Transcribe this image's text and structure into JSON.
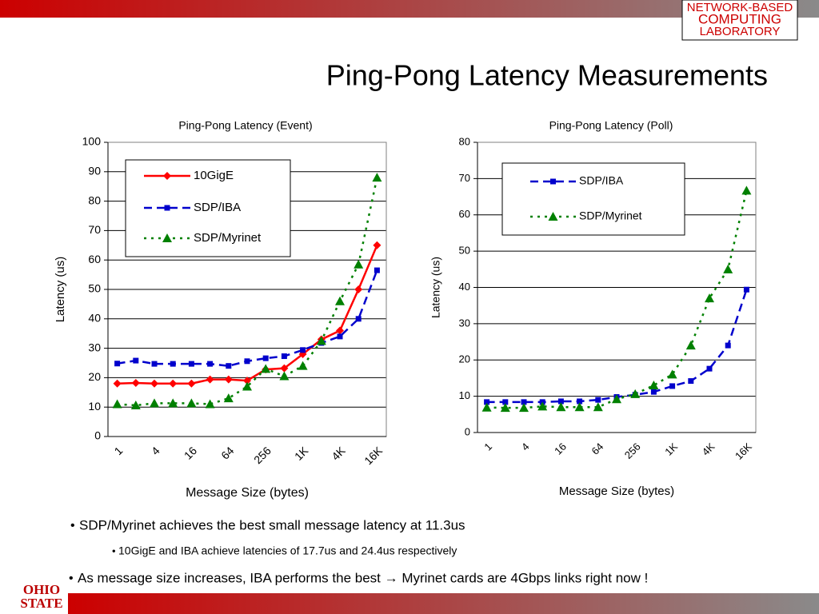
{
  "header": {
    "logo": [
      "NETWORK-BASED",
      "COMPUTING",
      "LABORATORY"
    ],
    "title": "Ping-Pong Latency Measurements"
  },
  "chart_data": [
    {
      "type": "line",
      "title": "Ping-Pong Latency (Event)",
      "x_label": "Message Size (bytes)",
      "y_label": "Latency (us)",
      "categories": [
        "1",
        null,
        "4",
        null,
        "16",
        null,
        "64",
        null,
        "256",
        null,
        "1K",
        null,
        "4K",
        null,
        "16K"
      ],
      "ylim": [
        0,
        100
      ],
      "yticks": [
        0,
        10,
        20,
        30,
        40,
        50,
        60,
        70,
        80,
        90,
        100
      ],
      "grid": true,
      "series": [
        {
          "name": "10GigE",
          "color": "#ff0000",
          "style": "solid",
          "marker": "diamond",
          "values": [
            18,
            18.2,
            18,
            18,
            18,
            19.4,
            19.4,
            19,
            22.8,
            23.2,
            28,
            33,
            36,
            50,
            65
          ]
        },
        {
          "name": "SDP/IBA",
          "color": "#0000cc",
          "style": "dashed",
          "marker": "square",
          "values": [
            24.8,
            25.8,
            24.7,
            24.7,
            24.7,
            24.7,
            24,
            25.6,
            26.6,
            27.3,
            29.4,
            31.8,
            34,
            40,
            56.5
          ]
        },
        {
          "name": "SDP/Myrinet",
          "color": "#008000",
          "style": "dotted",
          "marker": "triangle",
          "values": [
            11,
            10.6,
            11.3,
            11.3,
            11.3,
            11,
            13,
            17,
            23,
            20.5,
            24,
            32.5,
            46,
            58.5,
            88
          ]
        }
      ]
    },
    {
      "type": "line",
      "title": "Ping-Pong Latency (Poll)",
      "x_label": "Message Size (bytes)",
      "y_label": "Latency (us)",
      "categories": [
        "1",
        null,
        "4",
        null,
        "16",
        null,
        "64",
        null,
        "256",
        null,
        "1K",
        null,
        "4K",
        null,
        "16K"
      ],
      "ylim": [
        0,
        80
      ],
      "yticks": [
        0,
        10,
        20,
        30,
        40,
        50,
        60,
        70,
        80
      ],
      "grid": true,
      "series": [
        {
          "name": "SDP/IBA",
          "color": "#0000cc",
          "style": "dashed",
          "marker": "square",
          "values": [
            8.4,
            8.4,
            8.4,
            8.4,
            8.6,
            8.6,
            9,
            9.8,
            10.4,
            11.2,
            12.8,
            14.2,
            17.6,
            24,
            39.4
          ]
        },
        {
          "name": "SDP/Myrinet",
          "color": "#008000",
          "style": "dotted",
          "marker": "triangle",
          "values": [
            6.9,
            6.8,
            6.8,
            7.2,
            7,
            7,
            7,
            9.2,
            10.6,
            13,
            16,
            24,
            37,
            45,
            66.7
          ]
        }
      ]
    }
  ],
  "bullets": [
    "SDP/Myrinet achieves the best small message latency at 11.3us",
    "10GigE and IBA achieve latencies of 17.7us and 24.4us respectively",
    "As message size increases, IBA performs the best → Myrinet cards are 4Gbps links right now !"
  ],
  "footer": {
    "logo": [
      "OHIO",
      "STATE"
    ]
  }
}
